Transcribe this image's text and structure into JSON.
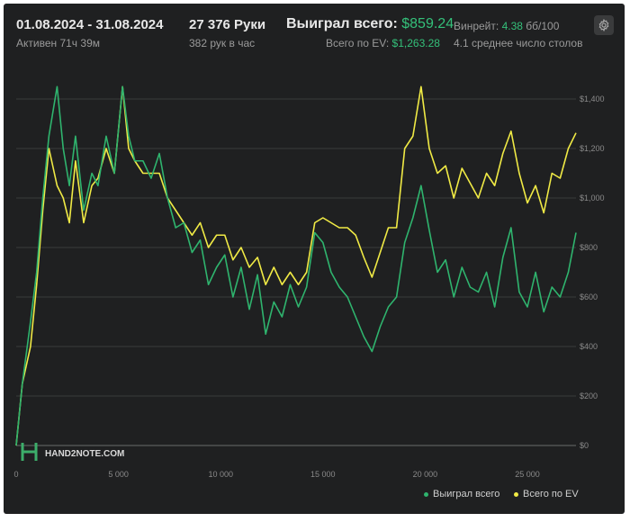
{
  "header": {
    "date_range": "01.08.2024 - 31.08.2024",
    "active": "Активен 71ч 39м",
    "hands": "27 376 Руки",
    "hands_per_hour": "382 рук в час",
    "won_label": "Выиграл всего:",
    "won_value": "$859.24",
    "ev_label": "Всего по EV:",
    "ev_value": "$1,263.28",
    "winrate_label": "Винрейт:",
    "winrate_value": "4.38",
    "winrate_unit": "бб/100",
    "avg_tables": "4.1 среднее число столов",
    "settings_icon": "gear-icon"
  },
  "watermark": "HAND2NOTE.COM",
  "colors": {
    "background": "#1f2021",
    "won": "#2fb46e",
    "ev": "#f0ea45",
    "grid": "#3a3b3c",
    "accent_green": "#34c07a"
  },
  "chart_data": {
    "type": "line",
    "x_ticks": [
      0,
      5000,
      10000,
      15000,
      20000,
      25000
    ],
    "x_tick_labels": [
      "0",
      "5 000",
      "10 000",
      "15 000",
      "20 000",
      "25 000"
    ],
    "y_ticks": [
      0,
      200,
      400,
      600,
      800,
      1000,
      1200,
      1400
    ],
    "y_tick_labels": [
      "$0",
      "$200",
      "$400",
      "$600",
      "$800",
      "$1,000",
      "$1,200",
      "$1,400"
    ],
    "xlim": [
      0,
      27376
    ],
    "ylim": [
      -40,
      1560
    ],
    "grid": true,
    "legend_position": "bottom-right",
    "series": [
      {
        "name": "Выиграл всего",
        "color": "#2fb46e",
        "x": [
          0,
          300,
          700,
          1000,
          1300,
          1600,
          2000,
          2300,
          2600,
          2900,
          3300,
          3700,
          4000,
          4400,
          4800,
          5200,
          5500,
          5800,
          6200,
          6600,
          7000,
          7400,
          7800,
          8200,
          8600,
          9000,
          9400,
          9800,
          10200,
          10600,
          11000,
          11400,
          11800,
          12200,
          12600,
          13000,
          13400,
          13800,
          14200,
          14600,
          15000,
          15400,
          15800,
          16200,
          16600,
          17000,
          17400,
          17800,
          18200,
          18600,
          19000,
          19400,
          19800,
          20200,
          20600,
          21000,
          21400,
          21800,
          22200,
          22600,
          23000,
          23400,
          23800,
          24200,
          24600,
          25000,
          25400,
          25800,
          26200,
          26600,
          27000,
          27376
        ],
        "y": [
          0,
          250,
          500,
          700,
          1000,
          1250,
          1450,
          1200,
          1050,
          1250,
          950,
          1100,
          1050,
          1250,
          1100,
          1450,
          1250,
          1150,
          1150,
          1080,
          1180,
          1000,
          880,
          900,
          780,
          830,
          650,
          720,
          770,
          600,
          720,
          550,
          690,
          450,
          580,
          520,
          650,
          560,
          640,
          860,
          820,
          700,
          640,
          600,
          520,
          440,
          380,
          480,
          560,
          600,
          820,
          920,
          1050,
          870,
          700,
          750,
          600,
          720,
          640,
          620,
          700,
          560,
          760,
          880,
          620,
          560,
          700,
          540,
          640,
          600,
          700,
          860
        ]
      },
      {
        "name": "Всего по EV",
        "color": "#f0ea45",
        "x": [
          0,
          300,
          700,
          1000,
          1300,
          1600,
          2000,
          2300,
          2600,
          2900,
          3300,
          3700,
          4000,
          4400,
          4800,
          5200,
          5500,
          5800,
          6200,
          6600,
          7000,
          7400,
          7800,
          8200,
          8600,
          9000,
          9400,
          9800,
          10200,
          10600,
          11000,
          11400,
          11800,
          12200,
          12600,
          13000,
          13400,
          13800,
          14200,
          14600,
          15000,
          15400,
          15800,
          16200,
          16600,
          17000,
          17400,
          17800,
          18200,
          18600,
          19000,
          19400,
          19800,
          20200,
          20600,
          21000,
          21400,
          21800,
          22200,
          22600,
          23000,
          23400,
          23800,
          24200,
          24600,
          25000,
          25400,
          25800,
          26200,
          26600,
          27000,
          27376
        ],
        "y": [
          0,
          250,
          400,
          650,
          950,
          1200,
          1050,
          1000,
          900,
          1150,
          900,
          1050,
          1080,
          1200,
          1100,
          1450,
          1200,
          1150,
          1100,
          1100,
          1100,
          1000,
          950,
          900,
          850,
          900,
          800,
          850,
          850,
          750,
          800,
          720,
          760,
          650,
          720,
          650,
          700,
          650,
          700,
          900,
          920,
          900,
          880,
          880,
          850,
          760,
          680,
          780,
          880,
          880,
          1200,
          1250,
          1450,
          1200,
          1100,
          1130,
          1000,
          1120,
          1060,
          1000,
          1100,
          1050,
          1180,
          1270,
          1100,
          980,
          1050,
          940,
          1100,
          1080,
          1200,
          1263
        ]
      }
    ]
  },
  "legend": {
    "won": "Выиграл всего",
    "ev": "Всего по EV"
  }
}
